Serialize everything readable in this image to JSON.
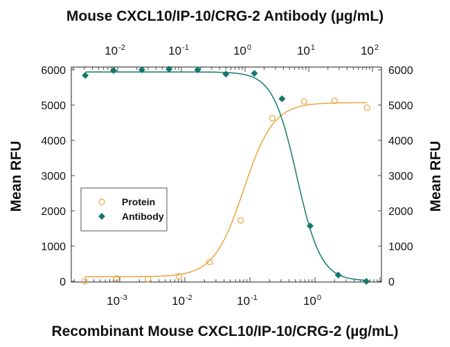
{
  "chart_data": {
    "type": "scatter",
    "title": "Mouse CXCL10/IP-10/CRG-2 Antibody (µg/mL)",
    "xlabel": "Recombinant Mouse CXCL10/IP-10/CRG-2 (µg/mL)",
    "ylabel": "Mean RFU",
    "ylabel_right": "Mean RFU",
    "ylim": [
      0,
      6000
    ],
    "yticks": [
      0,
      1000,
      2000,
      3000,
      4000,
      5000,
      6000
    ],
    "x_bottom": {
      "scale": "log",
      "ticks": [
        {
          "base": "10",
          "exp": "-3"
        },
        {
          "base": "10",
          "exp": "-2"
        },
        {
          "base": "10",
          "exp": "-1"
        },
        {
          "base": "10",
          "exp": "0"
        }
      ]
    },
    "x_top": {
      "scale": "log",
      "ticks": [
        {
          "base": "10",
          "exp": "-2"
        },
        {
          "base": "10",
          "exp": "-1"
        },
        {
          "base": "10",
          "exp": "0"
        },
        {
          "base": "10",
          "exp": "1"
        },
        {
          "base": "10",
          "exp": "2"
        }
      ]
    },
    "grid": false,
    "legend": {
      "position": "middle-left"
    },
    "series": [
      {
        "name": "Protein",
        "axis": "bottom",
        "marker": "open-circle",
        "color": "#E8A53C",
        "x": [
          0.00029,
          0.00089,
          0.0027,
          0.0081,
          0.024,
          0.072,
          0.22,
          0.68,
          2.0,
          6.3
        ],
        "y": [
          0,
          80,
          60,
          140,
          550,
          1730,
          4630,
          5100,
          5120,
          4930
        ]
      },
      {
        "name": "Antibody",
        "axis": "top",
        "marker": "filled-diamond",
        "color": "#16776F",
        "x": [
          0.0031,
          0.0086,
          0.024,
          0.064,
          0.18,
          0.5,
          1.4,
          3.8,
          10.5,
          29,
          80
        ],
        "y": [
          5840,
          5980,
          6000,
          6020,
          6000,
          5880,
          5900,
          5180,
          1570,
          180,
          0
        ]
      }
    ]
  }
}
